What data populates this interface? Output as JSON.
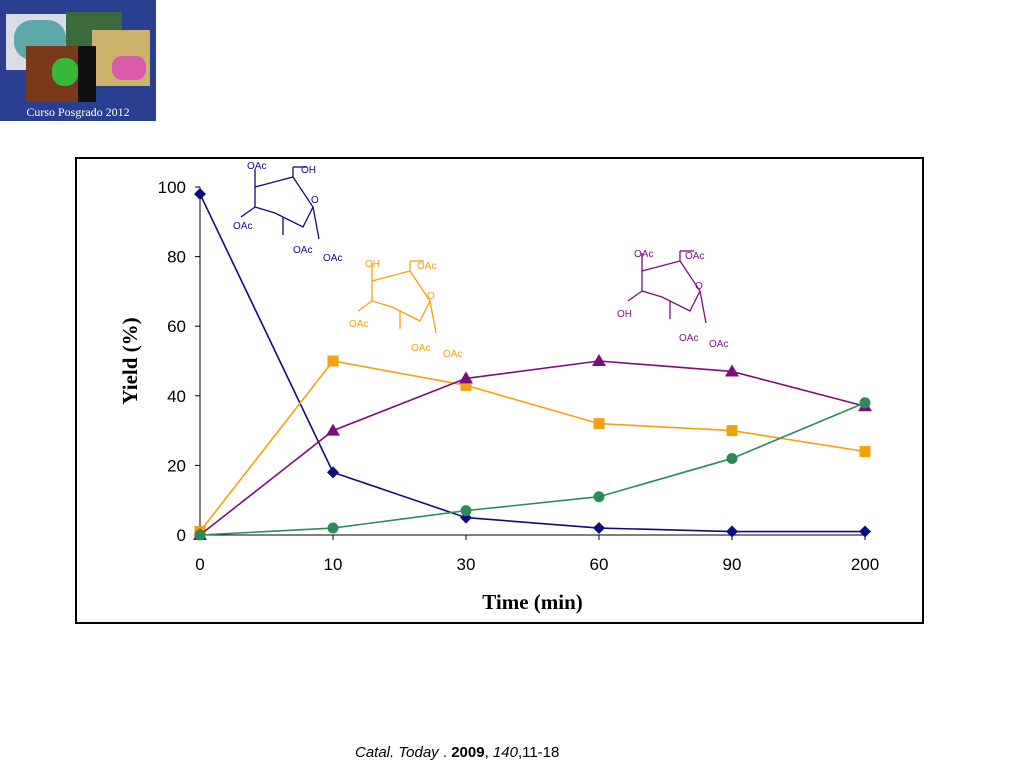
{
  "logo": {
    "caption": "Curso Posgrado 2012"
  },
  "colors": {
    "navy": "#0d0d80",
    "orange": "#f5a00f",
    "purple": "#7a0f7a",
    "green": "#2e8b57"
  },
  "chart_data": {
    "type": "line",
    "title": "",
    "xlabel": "Time (min)",
    "ylabel": "Yield (%)",
    "categories": [
      "0",
      "10",
      "30",
      "60",
      "90",
      "200"
    ],
    "ylim": [
      0,
      100
    ],
    "yticks": [
      "0",
      "20",
      "40",
      "60",
      "80",
      "100"
    ],
    "grid": false,
    "legend": "none",
    "series": [
      {
        "marker": "diamond",
        "color": "#0d0d80",
        "values": [
          98,
          18,
          5,
          2,
          1,
          1
        ]
      },
      {
        "marker": "square",
        "color": "#f5a00f",
        "values": [
          1,
          50,
          43,
          32,
          30,
          24
        ]
      },
      {
        "marker": "triangle",
        "color": "#7a0f7a",
        "values": [
          0,
          30,
          45,
          50,
          47,
          37
        ]
      },
      {
        "marker": "circle",
        "color": "#2e8b57",
        "values": [
          0,
          2,
          7,
          11,
          22,
          38
        ]
      }
    ],
    "annotations": [
      {
        "labels": [
          "OAc",
          "OH",
          "O",
          "OAc",
          "OAc",
          "OAc"
        ],
        "color": "#0d0d80"
      },
      {
        "labels": [
          "OH",
          "OAc",
          "O",
          "OAc",
          "OAc",
          "OAc"
        ],
        "color": "#f5a00f"
      },
      {
        "labels": [
          "OAc",
          "OAc",
          "O",
          "OH",
          "OAc",
          "OAc"
        ],
        "color": "#7a0f7a"
      }
    ]
  },
  "citation": {
    "journal": "Catal. Today",
    "sep": " . ",
    "year": "2009",
    "comma1": ", ",
    "volume": "140",
    "pages": ",11-18"
  }
}
